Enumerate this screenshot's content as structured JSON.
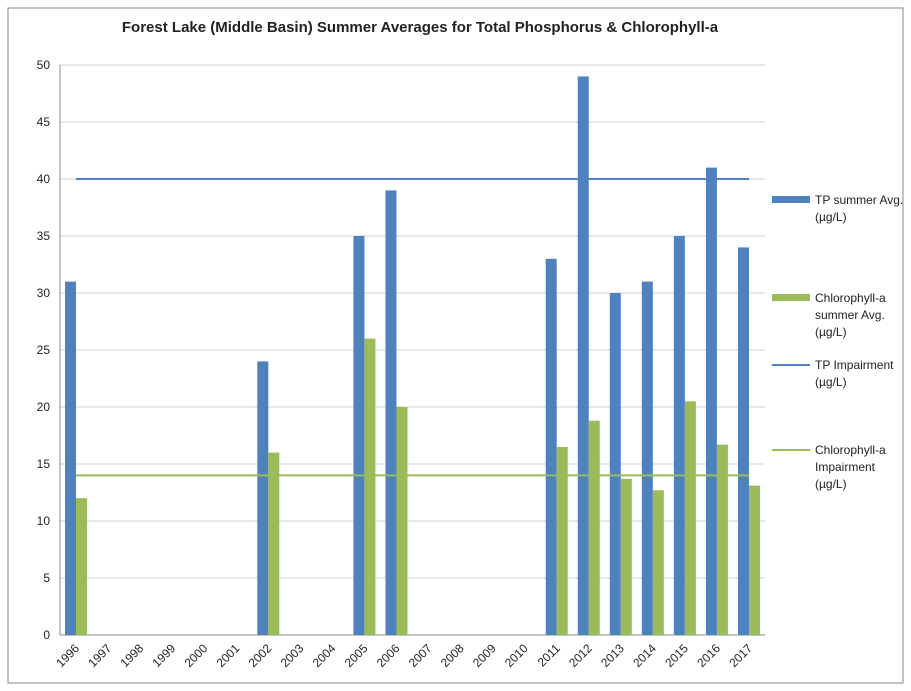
{
  "chart_data": {
    "type": "bar",
    "title": "Forest Lake (Middle Basin) Summer Averages for Total Phosphorus & Chlorophyll-a",
    "categories": [
      "1996",
      "1997",
      "1998",
      "1999",
      "2000",
      "2001",
      "2002",
      "2003",
      "2004",
      "2005",
      "2006",
      "2007",
      "2008",
      "2009",
      "2010",
      "2011",
      "2012",
      "2013",
      "2014",
      "2015",
      "2016",
      "2017"
    ],
    "series": [
      {
        "name": "TP summer Avg. (µg/L)",
        "type": "bar",
        "color": "#4f81bd",
        "values": [
          31,
          null,
          null,
          null,
          null,
          null,
          24,
          null,
          null,
          35,
          39,
          null,
          null,
          null,
          null,
          33,
          49,
          30,
          31,
          35,
          41,
          34
        ]
      },
      {
        "name": "Chlorophyll-a summer Avg. (µg/L)",
        "type": "bar",
        "color": "#9bbb59",
        "values": [
          12,
          null,
          null,
          null,
          null,
          null,
          16,
          null,
          null,
          26,
          20,
          null,
          null,
          null,
          null,
          16.5,
          18.8,
          13.7,
          12.7,
          20.5,
          16.7,
          13.1
        ]
      },
      {
        "name": "TP Impairment (µg/L)",
        "type": "line",
        "color": "#4f81bd",
        "values": [
          40,
          40,
          40,
          40,
          40,
          40,
          40,
          40,
          40,
          40,
          40,
          40,
          40,
          40,
          40,
          40,
          40,
          40,
          40,
          40,
          40,
          40
        ]
      },
      {
        "name": "Chlorophyll-a Impairment (µg/L)",
        "type": "line",
        "color": "#9bbb59",
        "values": [
          14,
          14,
          14,
          14,
          14,
          14,
          14,
          14,
          14,
          14,
          14,
          14,
          14,
          14,
          14,
          14,
          14,
          14,
          14,
          14,
          14,
          14
        ]
      }
    ],
    "ylim": [
      0,
      50
    ],
    "yticks": [
      0,
      5,
      10,
      15,
      20,
      25,
      30,
      35,
      40,
      45,
      50
    ],
    "grid": true,
    "legend": "right"
  }
}
